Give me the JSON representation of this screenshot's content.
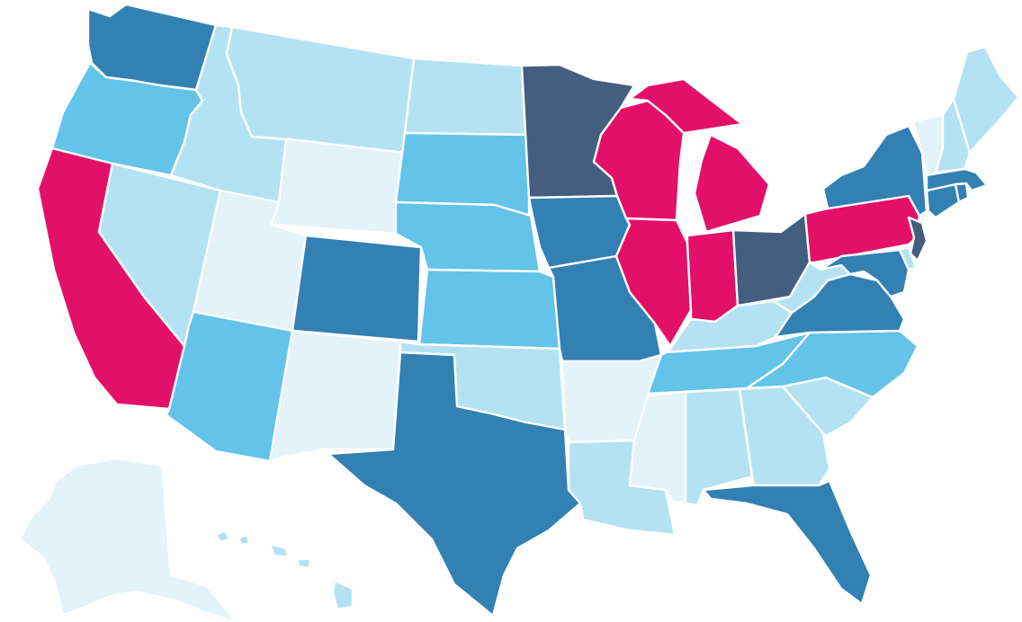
{
  "map": {
    "palette": {
      "very_light": "#e4f2fa",
      "light": "#b5e2f3",
      "medium": "#63c3e9",
      "dark": "#3380b3",
      "navy": "#435e7e",
      "magenta": "#e3106a"
    },
    "states": [
      {
        "id": "WA",
        "fill": "dark"
      },
      {
        "id": "OR",
        "fill": "medium"
      },
      {
        "id": "CA",
        "fill": "magenta"
      },
      {
        "id": "NV",
        "fill": "light"
      },
      {
        "id": "ID",
        "fill": "light"
      },
      {
        "id": "MT",
        "fill": "light"
      },
      {
        "id": "WY",
        "fill": "very_light"
      },
      {
        "id": "UT",
        "fill": "very_light"
      },
      {
        "id": "AZ",
        "fill": "medium"
      },
      {
        "id": "CO",
        "fill": "dark"
      },
      {
        "id": "NM",
        "fill": "very_light"
      },
      {
        "id": "ND",
        "fill": "light"
      },
      {
        "id": "SD",
        "fill": "medium"
      },
      {
        "id": "NE",
        "fill": "medium"
      },
      {
        "id": "KS",
        "fill": "medium"
      },
      {
        "id": "OK",
        "fill": "light"
      },
      {
        "id": "TX",
        "fill": "dark"
      },
      {
        "id": "MN",
        "fill": "navy"
      },
      {
        "id": "IA",
        "fill": "dark"
      },
      {
        "id": "MO",
        "fill": "dark"
      },
      {
        "id": "AR",
        "fill": "very_light"
      },
      {
        "id": "LA",
        "fill": "light"
      },
      {
        "id": "WI",
        "fill": "magenta"
      },
      {
        "id": "IL",
        "fill": "magenta"
      },
      {
        "id": "MI",
        "fill": "magenta"
      },
      {
        "id": "IN",
        "fill": "magenta"
      },
      {
        "id": "OH",
        "fill": "navy"
      },
      {
        "id": "KY",
        "fill": "light"
      },
      {
        "id": "TN",
        "fill": "medium"
      },
      {
        "id": "MS",
        "fill": "very_light"
      },
      {
        "id": "AL",
        "fill": "light"
      },
      {
        "id": "GA",
        "fill": "light"
      },
      {
        "id": "FL",
        "fill": "dark"
      },
      {
        "id": "SC",
        "fill": "light"
      },
      {
        "id": "NC",
        "fill": "medium"
      },
      {
        "id": "VA",
        "fill": "dark"
      },
      {
        "id": "WV",
        "fill": "light"
      },
      {
        "id": "PA",
        "fill": "magenta"
      },
      {
        "id": "NY",
        "fill": "dark"
      },
      {
        "id": "MD",
        "fill": "dark"
      },
      {
        "id": "DE",
        "fill": "light"
      },
      {
        "id": "NJ",
        "fill": "navy"
      },
      {
        "id": "CT",
        "fill": "dark"
      },
      {
        "id": "RI",
        "fill": "dark"
      },
      {
        "id": "MA",
        "fill": "dark"
      },
      {
        "id": "VT",
        "fill": "very_light"
      },
      {
        "id": "NH",
        "fill": "light"
      },
      {
        "id": "ME",
        "fill": "light"
      },
      {
        "id": "AK",
        "fill": "very_light"
      },
      {
        "id": "HI",
        "fill": "light"
      }
    ]
  }
}
